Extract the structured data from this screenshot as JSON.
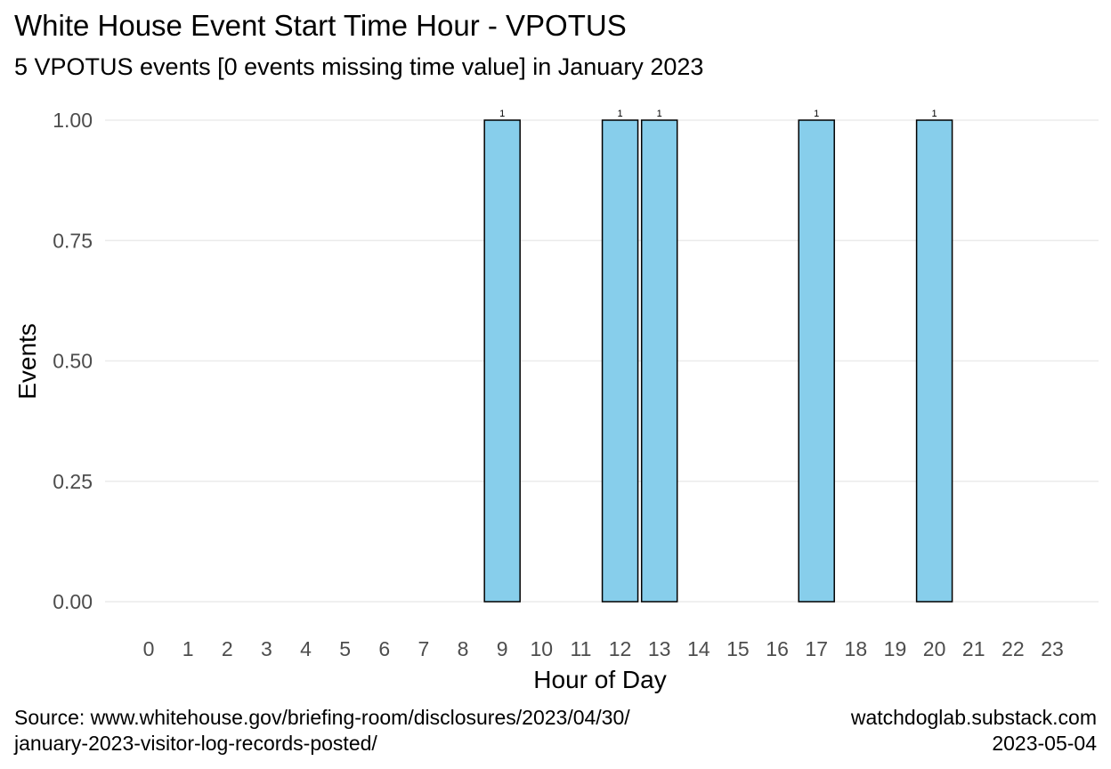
{
  "chart_data": {
    "type": "bar",
    "title": "White House Event Start Time Hour - VPOTUS",
    "subtitle": "5 VPOTUS events [0 events missing time value] in January 2023",
    "xlabel": "Hour of Day",
    "ylabel": "Events",
    "categories": [
      "0",
      "1",
      "2",
      "3",
      "4",
      "5",
      "6",
      "7",
      "8",
      "9",
      "10",
      "11",
      "12",
      "13",
      "14",
      "15",
      "16",
      "17",
      "18",
      "19",
      "20",
      "21",
      "22",
      "23"
    ],
    "values": [
      0,
      0,
      0,
      0,
      0,
      0,
      0,
      0,
      0,
      1,
      0,
      0,
      1,
      1,
      0,
      0,
      0,
      1,
      0,
      0,
      1,
      0,
      0,
      0
    ],
    "data_labels": [
      "",
      "",
      "",
      "",
      "",
      "",
      "",
      "",
      "",
      "1",
      "",
      "",
      "1",
      "1",
      "",
      "",
      "",
      "1",
      "",
      "",
      "1",
      "",
      "",
      ""
    ],
    "ylim": [
      0,
      1
    ],
    "yticks": [
      "0.00",
      "0.25",
      "0.50",
      "0.75",
      "1.00"
    ],
    "grid": "horizontal",
    "legend": "none",
    "colors": {
      "bar_fill": "#87CEEB",
      "bar_stroke": "#000000",
      "grid": "#EBEBEB",
      "tick_text": "#4D4D4D"
    }
  },
  "caption": {
    "source_line1": "Source: www.whitehouse.gov/briefing-room/disclosures/2023/04/30/",
    "source_line2": "january-2023-visitor-log-records-posted/",
    "site": "watchdoglab.substack.com",
    "date": "2023-05-04"
  }
}
